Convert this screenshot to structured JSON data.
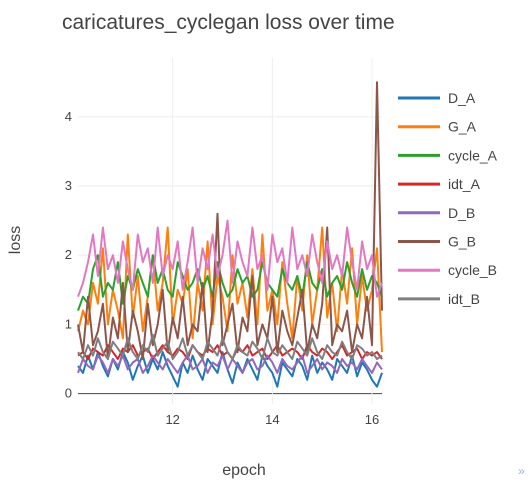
{
  "more_link": "»",
  "chart_data": {
    "type": "line",
    "title": "caricatures_cyclegan loss over time",
    "xlabel": "epoch",
    "ylabel": "loss",
    "xlim": [
      10.1,
      16.2
    ],
    "ylim": [
      -0.15,
      4.85
    ],
    "xticks": [
      12,
      14,
      16
    ],
    "yticks": [
      0,
      1,
      2,
      3,
      4
    ],
    "grid": true,
    "legend_position": "right",
    "x": [
      10.1,
      10.2,
      10.3,
      10.4,
      10.5,
      10.6,
      10.7,
      10.8,
      10.9,
      11.0,
      11.1,
      11.2,
      11.3,
      11.4,
      11.5,
      11.6,
      11.7,
      11.8,
      11.9,
      12.0,
      12.1,
      12.2,
      12.3,
      12.4,
      12.5,
      12.6,
      12.7,
      12.8,
      12.9,
      13.0,
      13.1,
      13.2,
      13.3,
      13.4,
      13.5,
      13.6,
      13.7,
      13.8,
      13.9,
      14.0,
      14.1,
      14.2,
      14.3,
      14.4,
      14.5,
      14.6,
      14.7,
      14.8,
      14.9,
      15.0,
      15.1,
      15.2,
      15.3,
      15.4,
      15.5,
      15.6,
      15.7,
      15.8,
      15.9,
      16.0,
      16.1,
      16.2
    ],
    "series": [
      {
        "name": "D_A",
        "color": "#1f77b4",
        "values": [
          0.4,
          0.3,
          0.55,
          0.35,
          0.6,
          0.4,
          0.25,
          0.5,
          0.35,
          0.6,
          0.45,
          0.2,
          0.4,
          0.55,
          0.3,
          0.5,
          0.35,
          0.6,
          0.4,
          0.25,
          0.1,
          0.45,
          0.3,
          0.55,
          0.35,
          0.2,
          0.5,
          0.4,
          0.3,
          0.6,
          0.35,
          0.15,
          0.45,
          0.3,
          0.5,
          0.35,
          0.2,
          0.55,
          0.4,
          0.3,
          0.1,
          0.45,
          0.35,
          0.25,
          0.5,
          0.4,
          0.2,
          0.55,
          0.3,
          0.45,
          0.35,
          0.2,
          0.5,
          0.4,
          0.3,
          0.55,
          0.25,
          0.45,
          0.35,
          0.2,
          0.1,
          0.3
        ]
      },
      {
        "name": "G_A",
        "color": "#ff7f0e",
        "values": [
          0.9,
          1.2,
          1.0,
          1.6,
          1.3,
          2.1,
          1.0,
          1.5,
          1.2,
          0.8,
          2.3,
          1.1,
          1.7,
          0.9,
          1.4,
          2.0,
          1.2,
          1.6,
          2.4,
          1.0,
          1.5,
          1.3,
          1.8,
          0.8,
          1.6,
          1.2,
          2.2,
          1.0,
          1.7,
          1.4,
          0.9,
          2.0,
          1.3,
          1.6,
          1.1,
          1.8,
          1.0,
          2.3,
          1.2,
          1.5,
          1.0,
          1.9,
          1.3,
          0.8,
          1.7,
          1.2,
          2.0,
          1.0,
          1.5,
          2.4,
          1.1,
          1.6,
          0.9,
          1.8,
          1.3,
          2.1,
          1.0,
          1.7,
          1.2,
          1.5,
          2.1,
          0.6
        ]
      },
      {
        "name": "cycle_A",
        "color": "#2ca02c",
        "values": [
          1.2,
          1.4,
          1.3,
          1.8,
          2.0,
          1.4,
          1.6,
          1.5,
          1.9,
          1.3,
          1.7,
          1.5,
          1.8,
          1.6,
          1.4,
          2.0,
          1.6,
          1.8,
          1.5,
          1.4,
          1.9,
          1.7,
          1.5,
          1.6,
          1.8,
          1.5,
          1.7,
          1.4,
          1.9,
          1.6,
          1.4,
          1.5,
          1.8,
          1.6,
          1.7,
          1.4,
          1.5,
          1.9,
          1.6,
          1.5,
          1.4,
          1.8,
          1.6,
          1.5,
          1.7,
          1.4,
          1.9,
          1.6,
          1.5,
          1.8,
          1.4,
          1.6,
          1.7,
          1.5,
          1.9,
          1.6,
          1.4,
          1.8,
          1.5,
          1.7,
          1.6,
          1.4
        ]
      },
      {
        "name": "idt_A",
        "color": "#d62728",
        "values": [
          0.55,
          0.6,
          0.5,
          0.65,
          0.6,
          0.55,
          0.7,
          0.6,
          0.5,
          0.65,
          0.6,
          0.7,
          0.55,
          0.6,
          0.65,
          0.5,
          0.6,
          0.7,
          0.6,
          0.55,
          0.65,
          0.6,
          0.5,
          0.7,
          0.6,
          0.55,
          0.65,
          0.6,
          0.7,
          0.55,
          0.6,
          0.5,
          0.65,
          0.6,
          0.7,
          0.55,
          0.6,
          0.65,
          0.5,
          0.6,
          0.7,
          0.55,
          0.6,
          0.65,
          0.6,
          0.5,
          0.7,
          0.6,
          0.55,
          0.65,
          0.6,
          0.5,
          0.6,
          0.7,
          0.55,
          0.6,
          0.65,
          0.5,
          0.6,
          0.55,
          0.6,
          0.5
        ]
      },
      {
        "name": "D_B",
        "color": "#9467bd",
        "values": [
          0.3,
          0.5,
          0.4,
          0.35,
          0.55,
          0.45,
          0.3,
          0.5,
          0.4,
          0.55,
          0.35,
          0.45,
          0.5,
          0.3,
          0.4,
          0.55,
          0.45,
          0.35,
          0.5,
          0.4,
          0.3,
          0.45,
          0.55,
          0.35,
          0.4,
          0.5,
          0.3,
          0.45,
          0.4,
          0.55,
          0.35,
          0.5,
          0.4,
          0.3,
          0.45,
          0.5,
          0.35,
          0.4,
          0.55,
          0.45,
          0.3,
          0.5,
          0.4,
          0.35,
          0.45,
          0.55,
          0.3,
          0.4,
          0.5,
          0.35,
          0.45,
          0.4,
          0.3,
          0.5,
          0.4,
          0.45,
          0.35,
          0.5,
          0.4,
          0.3,
          0.45,
          0.35
        ]
      },
      {
        "name": "G_B",
        "color": "#8c564b",
        "values": [
          1.0,
          0.6,
          1.4,
          0.7,
          0.9,
          1.3,
          0.5,
          1.1,
          0.8,
          1.6,
          0.6,
          1.2,
          0.9,
          0.5,
          1.3,
          0.7,
          1.0,
          1.5,
          0.6,
          1.1,
          0.8,
          1.4,
          0.7,
          1.0,
          0.9,
          1.6,
          0.6,
          1.2,
          2.6,
          0.7,
          1.0,
          1.3,
          0.6,
          1.1,
          0.9,
          1.7,
          0.7,
          1.0,
          0.8,
          1.4,
          0.6,
          1.2,
          0.9,
          0.7,
          1.1,
          1.5,
          0.6,
          1.0,
          0.8,
          1.3,
          2.4,
          0.7,
          1.0,
          0.9,
          1.2,
          0.6,
          1.0,
          0.8,
          1.4,
          0.7,
          4.5,
          1.2
        ]
      },
      {
        "name": "cycle_B",
        "color": "#e377c2",
        "values": [
          1.4,
          1.6,
          1.9,
          2.3,
          1.7,
          2.4,
          1.8,
          2.0,
          1.6,
          2.2,
          1.8,
          1.5,
          2.3,
          1.9,
          2.1,
          1.6,
          2.4,
          1.7,
          2.0,
          1.8,
          2.2,
          1.5,
          1.9,
          2.4,
          1.6,
          2.1,
          1.8,
          2.3,
          1.7,
          2.0,
          2.5,
          1.6,
          2.2,
          1.9,
          1.7,
          2.4,
          1.8,
          2.0,
          1.5,
          2.3,
          1.9,
          2.1,
          1.6,
          2.4,
          1.8,
          2.0,
          1.7,
          2.3,
          1.9,
          1.6,
          2.2,
          1.8,
          2.0,
          1.7,
          2.4,
          1.9,
          1.5,
          2.2,
          1.8,
          2.0,
          1.4,
          1.6
        ]
      },
      {
        "name": "idt_B",
        "color": "#7f7f7f",
        "values": [
          0.6,
          0.5,
          0.7,
          0.55,
          0.8,
          0.6,
          0.5,
          0.75,
          0.65,
          0.55,
          0.8,
          0.6,
          0.5,
          0.7,
          0.6,
          0.85,
          0.55,
          0.65,
          0.75,
          0.5,
          0.6,
          0.8,
          0.55,
          0.7,
          0.6,
          0.5,
          0.75,
          0.65,
          0.55,
          0.8,
          0.6,
          0.5,
          0.7,
          0.6,
          0.55,
          0.75,
          0.65,
          0.5,
          0.8,
          0.6,
          0.55,
          0.7,
          0.6,
          0.5,
          0.75,
          0.65,
          0.55,
          0.8,
          0.6,
          0.5,
          0.7,
          0.6,
          0.55,
          0.75,
          0.6,
          0.5,
          0.7,
          0.65,
          0.55,
          0.6,
          0.5,
          0.55
        ]
      }
    ]
  }
}
